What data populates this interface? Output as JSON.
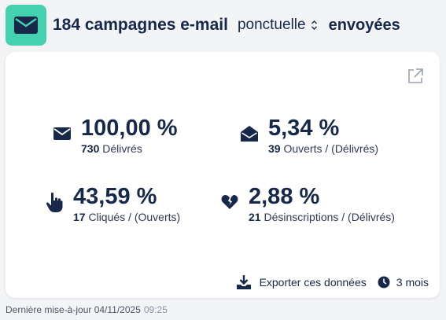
{
  "header": {
    "count_title": "184 campagnes e-mail",
    "type_select": "ponctuelle",
    "status": "envoyées"
  },
  "stats": [
    {
      "value": "100,00 %",
      "count": "730",
      "label": "Délivrés",
      "icon": "envelope-icon"
    },
    {
      "value": "5,34 %",
      "count": "39",
      "label": "Ouverts / (Délivrés)",
      "icon": "open-envelope-icon"
    },
    {
      "value": "43,59 %",
      "count": "17",
      "label": "Cliqués / (Ouverts)",
      "icon": "pointer-hand-icon"
    },
    {
      "value": "2,88 %",
      "count": "21",
      "label": "Désinscriptions / (Délivrés)",
      "icon": "broken-heart-icon"
    }
  ],
  "footer": {
    "export_label": "Exporter ces données",
    "period_label": "3 mois"
  },
  "last_update": {
    "label": "Dernière mise-à-jour 04/11/2025",
    "time": "09:25"
  },
  "colors": {
    "accent": "#44d1b0",
    "navy": "#17284a",
    "background": "#f3f4f6"
  }
}
